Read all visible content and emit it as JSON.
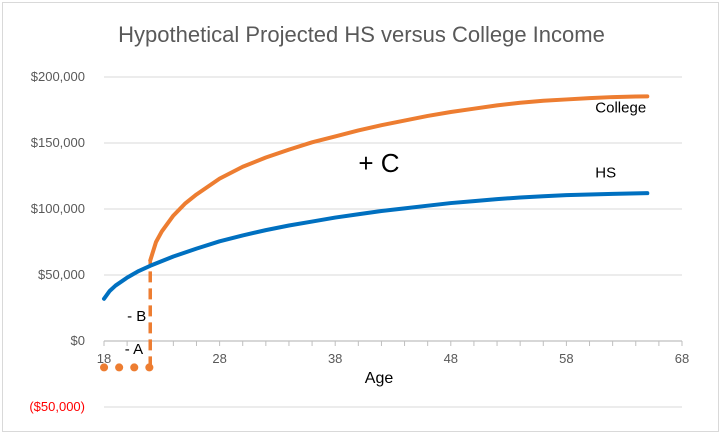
{
  "chart_data": {
    "type": "line",
    "title": "Hypothetical Projected HS versus College Income",
    "xlabel": "Age",
    "ylabel": "",
    "xlim": [
      18,
      68
    ],
    "ylim": [
      -50000,
      200000
    ],
    "x_ticks": [
      18,
      28,
      38,
      48,
      58,
      68
    ],
    "y_ticks": [
      {
        "value": 200000,
        "label": "$200,000",
        "color": "#595959"
      },
      {
        "value": 150000,
        "label": "$150,000",
        "color": "#595959"
      },
      {
        "value": 100000,
        "label": "$100,000",
        "color": "#595959"
      },
      {
        "value": 50000,
        "label": "$50,000",
        "color": "#595959"
      },
      {
        "value": 0,
        "label": "$0",
        "color": "#595959"
      },
      {
        "value": -50000,
        "label": "($50,000)",
        "color": "#ff0000"
      }
    ],
    "grid": true,
    "series": [
      {
        "name": "College",
        "color": "#ed7d31",
        "x": [
          22,
          22.5,
          23,
          24,
          25,
          26,
          28,
          30,
          32,
          34,
          36,
          38,
          40,
          42,
          44,
          46,
          48,
          50,
          52,
          54,
          56,
          58,
          60,
          62,
          64,
          65
        ],
        "y": [
          61000,
          75000,
          83000,
          95000,
          104000,
          111000,
          123000,
          132000,
          139000,
          145000,
          150500,
          155000,
          159500,
          163500,
          167000,
          170500,
          173500,
          176000,
          178500,
          180500,
          182000,
          183000,
          184000,
          184800,
          185200,
          185300
        ]
      },
      {
        "name": "HS",
        "color": "#0070c0",
        "x": [
          18,
          18.5,
          19,
          20,
          21,
          22,
          24,
          26,
          28,
          30,
          32,
          34,
          36,
          38,
          40,
          42,
          44,
          46,
          48,
          50,
          52,
          54,
          56,
          58,
          60,
          62,
          64,
          65
        ],
        "y": [
          32000,
          38000,
          42000,
          48000,
          53000,
          57000,
          64000,
          70000,
          75500,
          80000,
          84000,
          87500,
          90500,
          93500,
          96000,
          98500,
          100500,
          102500,
          104500,
          106000,
          107500,
          108700,
          109700,
          110500,
          111000,
          111500,
          111800,
          112000
        ]
      }
    ],
    "college_prefix": {
      "color": "#ed7d31",
      "x": [
        18,
        19,
        20,
        21,
        22
      ],
      "y": [
        -20000,
        -20000,
        -20000,
        -20000,
        -20000
      ],
      "connector_x": 22,
      "connector_y": [
        -20000,
        61000
      ]
    },
    "annotations": [
      {
        "text": "College",
        "x": 60.5,
        "y": 173000
      },
      {
        "text": "HS",
        "x": 60.5,
        "y": 124000
      },
      {
        "text": "+ C",
        "x": 40,
        "y": 128000
      },
      {
        "text": "- B",
        "x": 20,
        "y": 15000
      },
      {
        "text": "- A",
        "x": 19.8,
        "y": -10000
      }
    ]
  }
}
